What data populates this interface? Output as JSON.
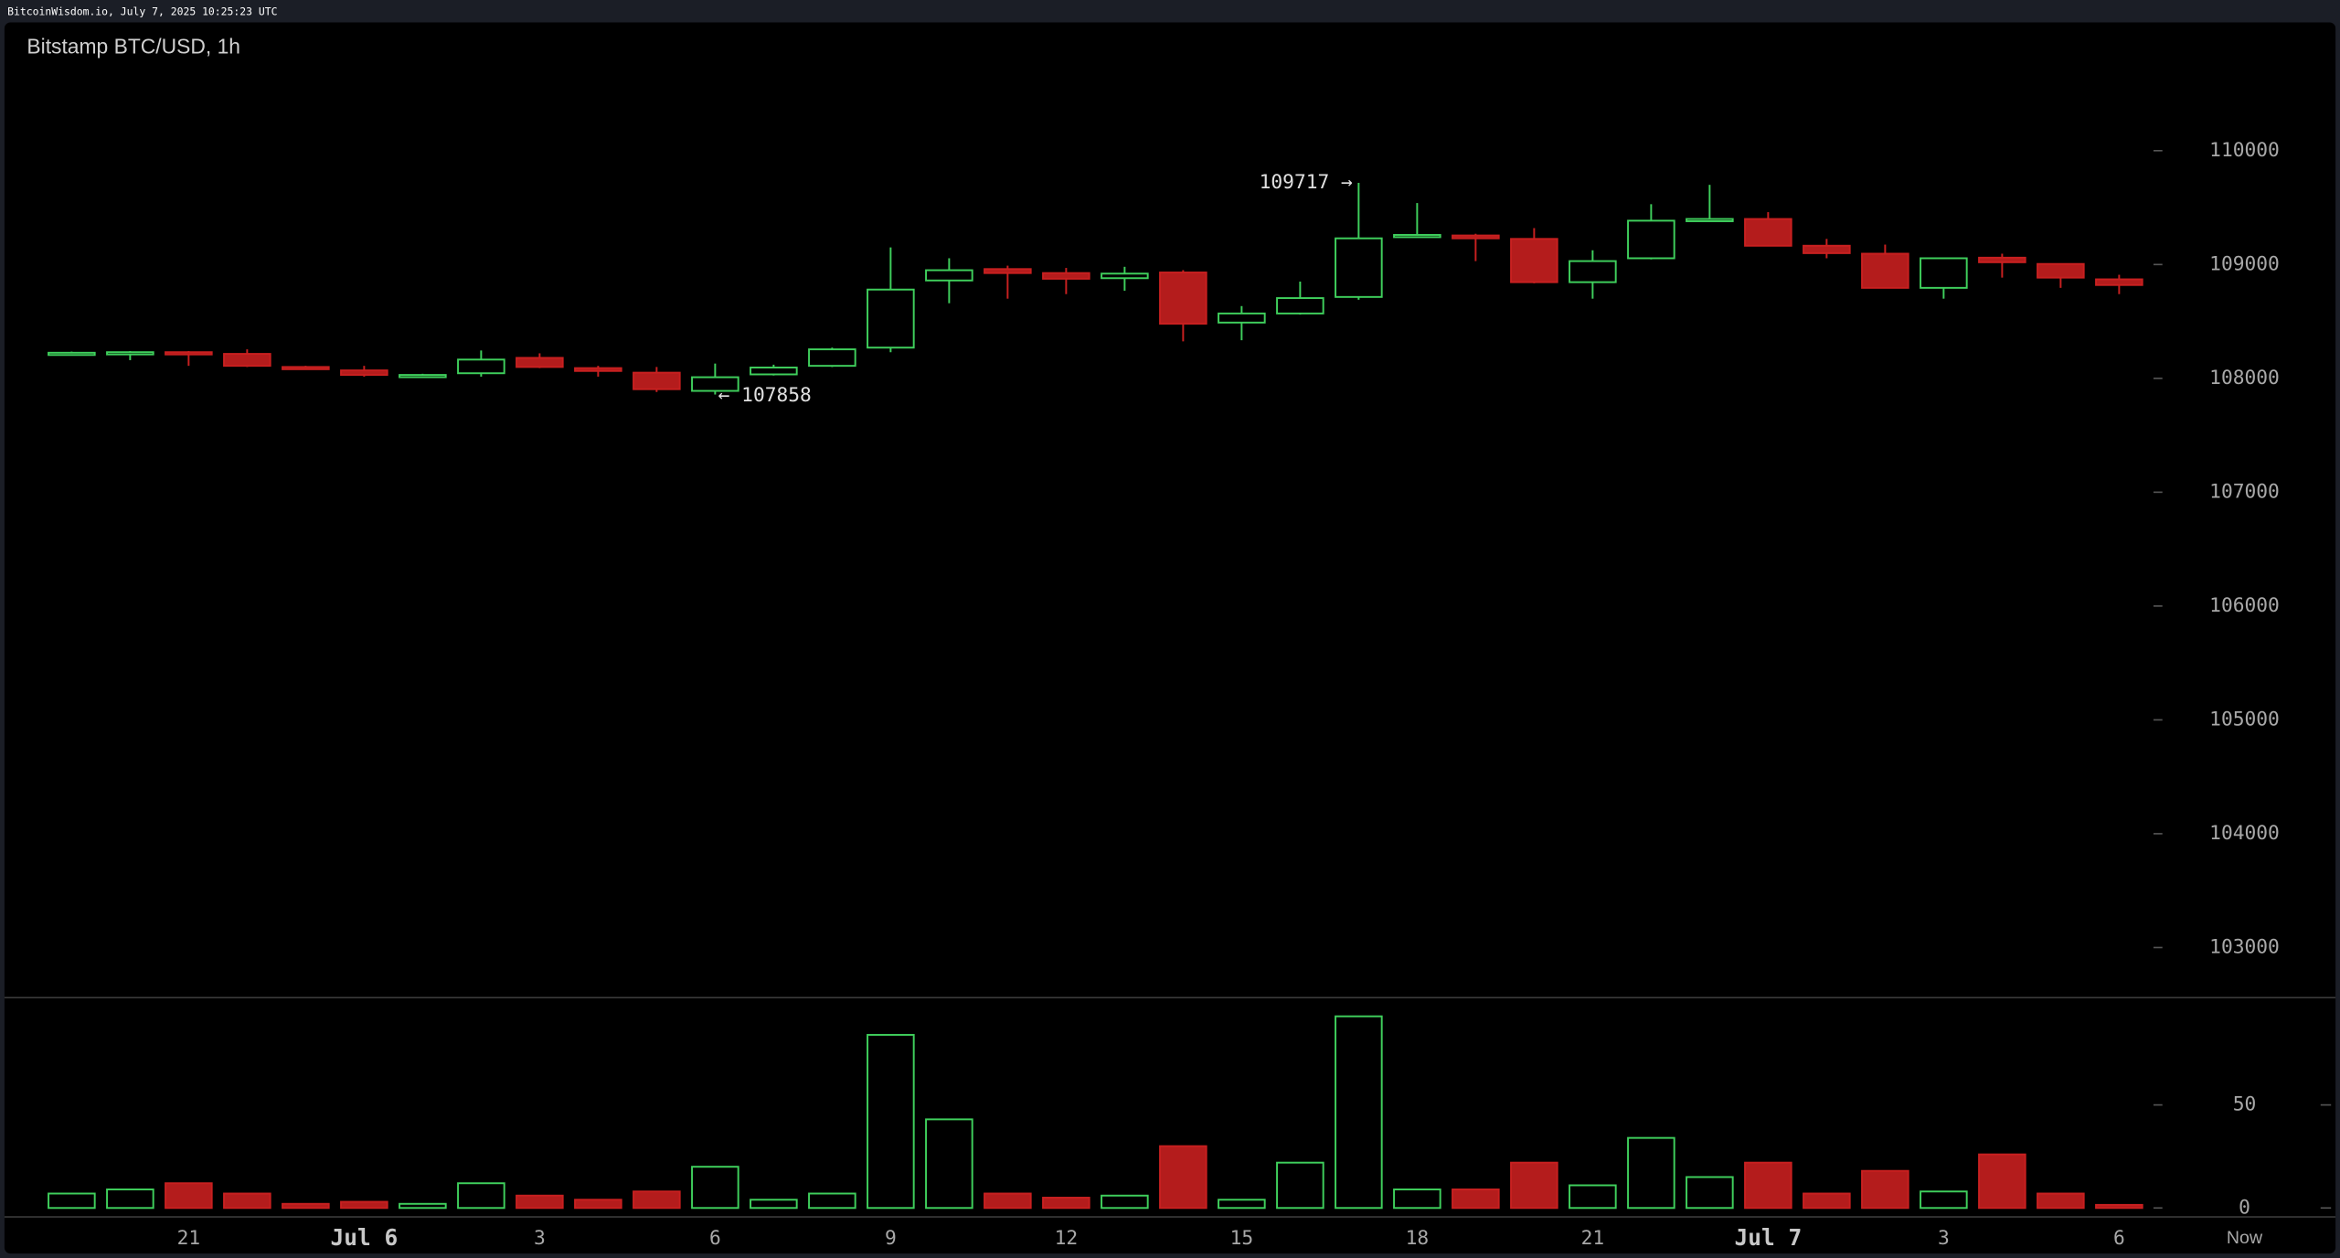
{
  "source": "BitcoinWisdom.io, July 7, 2025 10:25:23 UTC",
  "chart_data": {
    "type": "candlestick",
    "title": "Bitstamp BTC/USD, 1h",
    "categories": [
      null,
      null,
      "21",
      null,
      null,
      "Jul 6",
      null,
      null,
      "3",
      null,
      null,
      "6",
      null,
      null,
      "9",
      null,
      null,
      "12",
      null,
      null,
      "15",
      null,
      null,
      "18",
      null,
      null,
      "21",
      null,
      null,
      "Jul 7",
      null,
      null,
      "3",
      null,
      null,
      "6"
    ],
    "now_label": "Now",
    "open": [
      108210,
      108220,
      108230,
      108215,
      108100,
      108070,
      108015,
      108045,
      108180,
      108090,
      108050,
      107890,
      108035,
      108110,
      108270,
      108860,
      108960,
      108925,
      108880,
      108930,
      108490,
      108570,
      108715,
      109250,
      109255,
      109225,
      108845,
      109055,
      109390,
      109400,
      109165,
      109095,
      108795,
      109060,
      109005,
      108870
    ],
    "high": [
      108235,
      108240,
      108240,
      108255,
      108110,
      108110,
      108040,
      108245,
      108220,
      108110,
      108100,
      108130,
      108120,
      108270,
      109150,
      109055,
      108990,
      108970,
      108980,
      108950,
      108635,
      108850,
      109717,
      109540,
      109270,
      109320,
      109125,
      109530,
      109700,
      109460,
      109225,
      109175,
      109060,
      109095,
      109010,
      108910
    ],
    "low": [
      108205,
      108160,
      108110,
      108100,
      108080,
      108015,
      108005,
      108015,
      108090,
      108015,
      107880,
      107858,
      108025,
      108100,
      108230,
      108660,
      108700,
      108740,
      108770,
      108325,
      108335,
      108560,
      108690,
      109245,
      109030,
      108835,
      108700,
      109045,
      109385,
      109160,
      109055,
      108790,
      108700,
      108885,
      108795,
      108740
    ],
    "close": [
      108225,
      108230,
      108210,
      108110,
      108090,
      108030,
      108030,
      108165,
      108100,
      108065,
      107905,
      108010,
      108095,
      108255,
      108780,
      108950,
      108925,
      108875,
      108920,
      108480,
      108570,
      108705,
      109230,
      109260,
      109230,
      108845,
      109030,
      109385,
      109400,
      109165,
      109100,
      108795,
      109055,
      109020,
      108885,
      108820
    ],
    "volume": [
      7,
      9,
      12,
      7,
      2,
      3,
      2,
      12,
      6,
      4,
      8,
      20,
      4,
      7,
      84,
      43,
      7,
      5,
      6,
      30,
      4,
      22,
      93,
      9,
      9,
      22,
      11,
      34,
      15,
      22,
      7,
      18,
      8,
      26,
      7,
      1.5
    ],
    "up_color": "#3fcf5c",
    "down_color": "#b41c1c",
    "high_label": "109717 →",
    "low_label": "← 107858",
    "ylim": [
      102567,
      111127
    ],
    "yticks": [
      103000,
      104000,
      105000,
      106000,
      107000,
      108000,
      109000,
      110000
    ],
    "volume_ylim": [
      -4,
      101
    ],
    "volume_yticks": [
      0,
      50
    ]
  }
}
